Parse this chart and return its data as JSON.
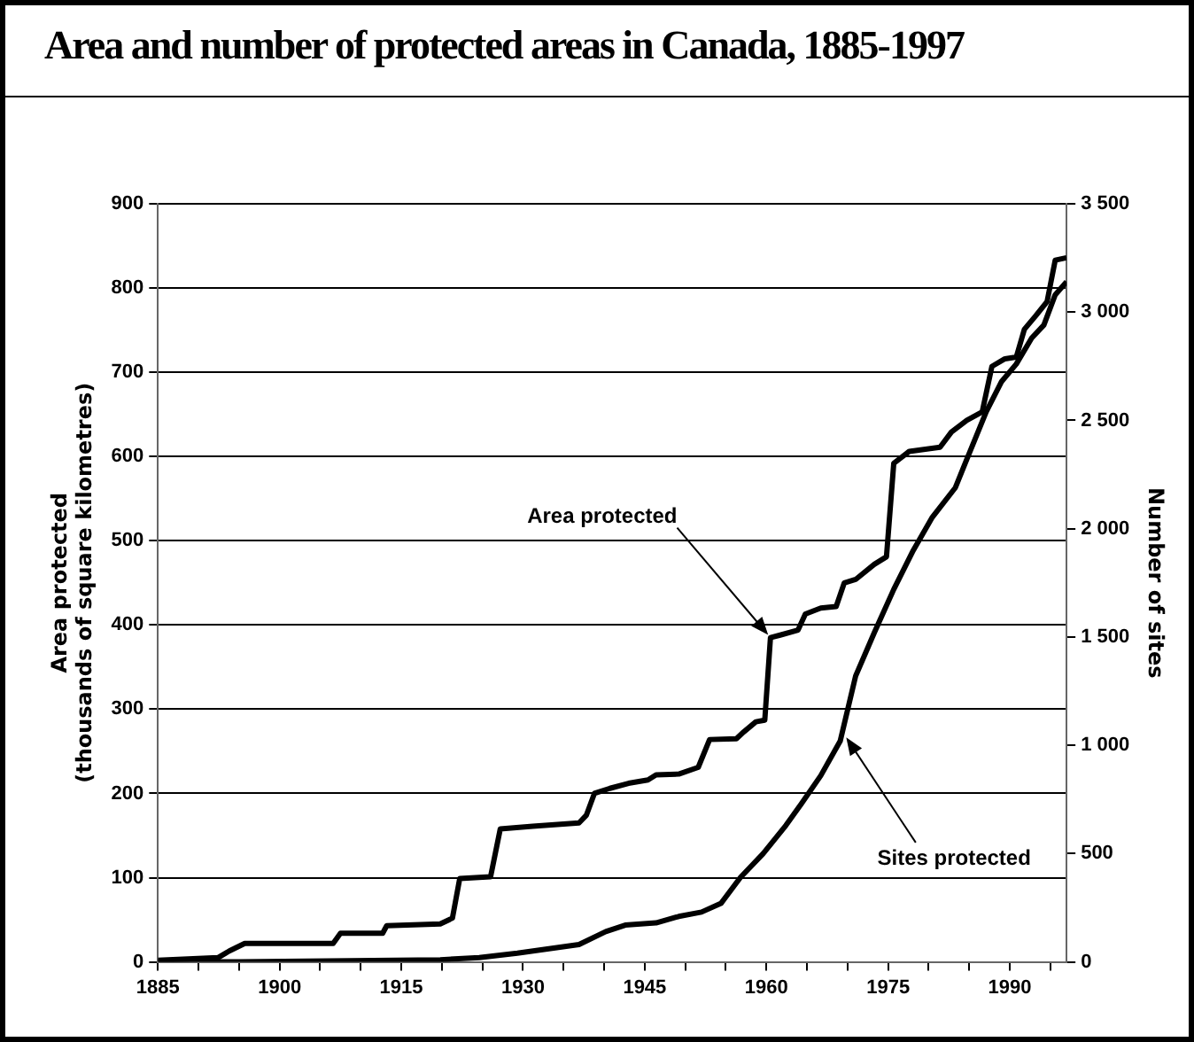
{
  "chart_data": {
    "type": "line",
    "title": "Area and number of protected areas in Canada, 1885-1997",
    "ylabel": "Area protected\n(thousands of square kilometres)",
    "y2label": "Number of sites",
    "xlim": [
      1885,
      1997
    ],
    "xticks": [
      1885,
      {
        "value": 1890,
        "label": null
      },
      {
        "value": 1895,
        "label": null
      },
      1900,
      {
        "value": 1905,
        "label": null
      },
      {
        "value": 1910,
        "label": null
      },
      1915,
      {
        "value": 1920,
        "label": null
      },
      {
        "value": 1925,
        "label": null
      },
      1930,
      {
        "value": 1935,
        "label": null
      },
      {
        "value": 1940,
        "label": null
      },
      1945,
      {
        "value": 1950,
        "label": null
      },
      {
        "value": 1955,
        "label": null
      },
      1960,
      {
        "value": 1965,
        "label": null
      },
      {
        "value": 1970,
        "label": null
      },
      1975,
      {
        "value": 1980,
        "label": null
      },
      {
        "value": 1985,
        "label": null
      },
      1990,
      {
        "value": 1995,
        "label": null
      }
    ],
    "ylim": [
      0,
      900
    ],
    "yticks": [
      0,
      100,
      200,
      300,
      400,
      500,
      600,
      700,
      800,
      900
    ],
    "y2lim": [
      0,
      3500
    ],
    "y2ticks": [
      0,
      500,
      {
        "value": 1000,
        "label": "1 000"
      },
      {
        "value": 1500,
        "label": "1 500"
      },
      {
        "value": 2000,
        "label": "2 000"
      },
      {
        "value": 2500,
        "label": "2 500"
      },
      {
        "value": 3000,
        "label": "3 000"
      },
      {
        "value": 3500,
        "label": "3 500"
      }
    ],
    "grid": "y",
    "legend": false,
    "marker": "none",
    "line_style": "solid",
    "series": [
      {
        "color": "#000000",
        "x": [
          1885,
          1892.4,
          1893.8,
          1895.7,
          1906.6,
          1907.5,
          1912.7,
          1913.2,
          1919.8,
          1921.3,
          1922.2,
          1926,
          1927.2,
          1931.2,
          1936.9,
          1937.8,
          1938.8,
          1940.7,
          1943,
          1945.4,
          1946.4,
          1949.2,
          1951.6,
          1953,
          1956.3,
          1957.2,
          1958.7,
          1959.8,
          1960.5,
          1961.7,
          1963.9,
          1964.8,
          1966.7,
          1968.6,
          1969.6,
          1971,
          1973.3,
          1974.8,
          1975.7,
          1977.6,
          1981.4,
          1982.8,
          1984.7,
          1986.6,
          1987.8,
          1989.4,
          1990.8,
          1991.8,
          1993.2,
          1994.6,
          1995.6,
          1997
        ],
        "values": [
          2,
          5,
          13,
          22,
          22,
          34,
          34,
          43,
          45,
          52,
          99,
          101,
          158,
          161,
          165,
          174,
          200,
          206,
          212,
          216,
          222,
          223,
          231,
          264,
          265,
          273,
          285,
          287,
          385,
          388,
          394,
          413,
          420,
          422,
          450,
          454,
          472,
          481,
          592,
          606,
          611,
          629,
          643,
          653,
          707,
          716,
          718,
          751,
          767,
          784,
          833,
          836
        ]
      },
      {
        "color": "#000000",
        "axis": "y2",
        "x": [
          1885,
          1895,
          1919.8,
          1924.6,
          1929.3,
          1936.9,
          1940.2,
          1942.6,
          1946.4,
          1949.2,
          1952,
          1954.4,
          1956.8,
          1959.6,
          1962.4,
          1964.3,
          1966.7,
          1969.1,
          1971,
          1973.3,
          1975.7,
          1978.1,
          1980.4,
          1983.3,
          1984.7,
          1987.1,
          1989,
          1990.8,
          1992.7,
          1994.2,
          1995.6,
          1997
        ],
        "values": [
          0,
          0,
          10,
          20,
          40,
          80,
          140,
          170,
          180,
          210,
          230,
          270,
          390,
          500,
          630,
          730,
          860,
          1020,
          1320,
          1520,
          1720,
          1900,
          2050,
          2190,
          2320,
          2540,
          2680,
          2760,
          2880,
          2940,
          3080,
          3140
        ]
      }
    ],
    "annotations": [
      {
        "text": "Area protected",
        "x": 1960.5,
        "y": 385
      },
      {
        "text": "Sites protected",
        "x": 1969.6,
        "y": 270
      }
    ]
  }
}
